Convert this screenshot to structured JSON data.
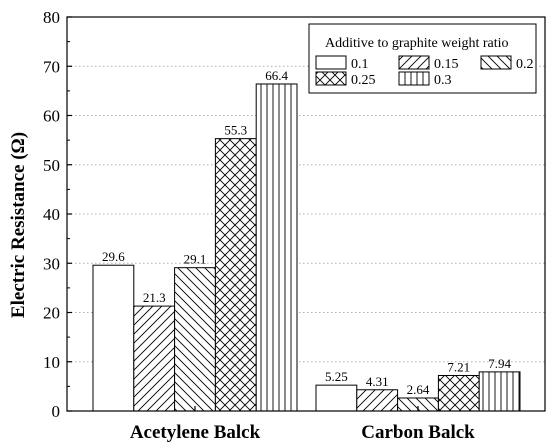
{
  "chart_data": {
    "type": "bar",
    "categories": [
      "Acetylene Balck",
      "Carbon Balck"
    ],
    "series": [
      {
        "name": "0.1",
        "values": [
          29.6,
          5.25
        ],
        "labels": [
          "29.6",
          "5.25"
        ],
        "pattern": "blank"
      },
      {
        "name": "0.15",
        "values": [
          21.3,
          4.31
        ],
        "labels": [
          "21.3",
          "4.31"
        ],
        "pattern": "diag-right"
      },
      {
        "name": "0.2",
        "values": [
          29.1,
          2.64
        ],
        "labels": [
          "29.1",
          "2.64"
        ],
        "pattern": "diag-left"
      },
      {
        "name": "0.25",
        "values": [
          55.3,
          7.21
        ],
        "labels": [
          "55.3",
          "7.21"
        ],
        "pattern": "crosshatch"
      },
      {
        "name": "0.3",
        "values": [
          66.4,
          7.94
        ],
        "labels": [
          "66.4",
          "7.94"
        ],
        "pattern": "vertical"
      }
    ],
    "title": "",
    "xlabel": "",
    "ylabel": "Electric Resistance (Ω)",
    "ylim": [
      0,
      80
    ],
    "yticks": [
      "0",
      "10",
      "20",
      "30",
      "40",
      "50",
      "60",
      "70",
      "80"
    ],
    "ytick_values": [
      0,
      10,
      20,
      30,
      40,
      50,
      60,
      70,
      80
    ],
    "grid": "horizontal dotted",
    "legend": {
      "title": "Additive to graphite weight ratio",
      "placement": "top-right",
      "columns": 3
    },
    "colors": {
      "stroke": "#000000",
      "fill": "#ffffff",
      "grid": "#b0b0b0"
    }
  }
}
